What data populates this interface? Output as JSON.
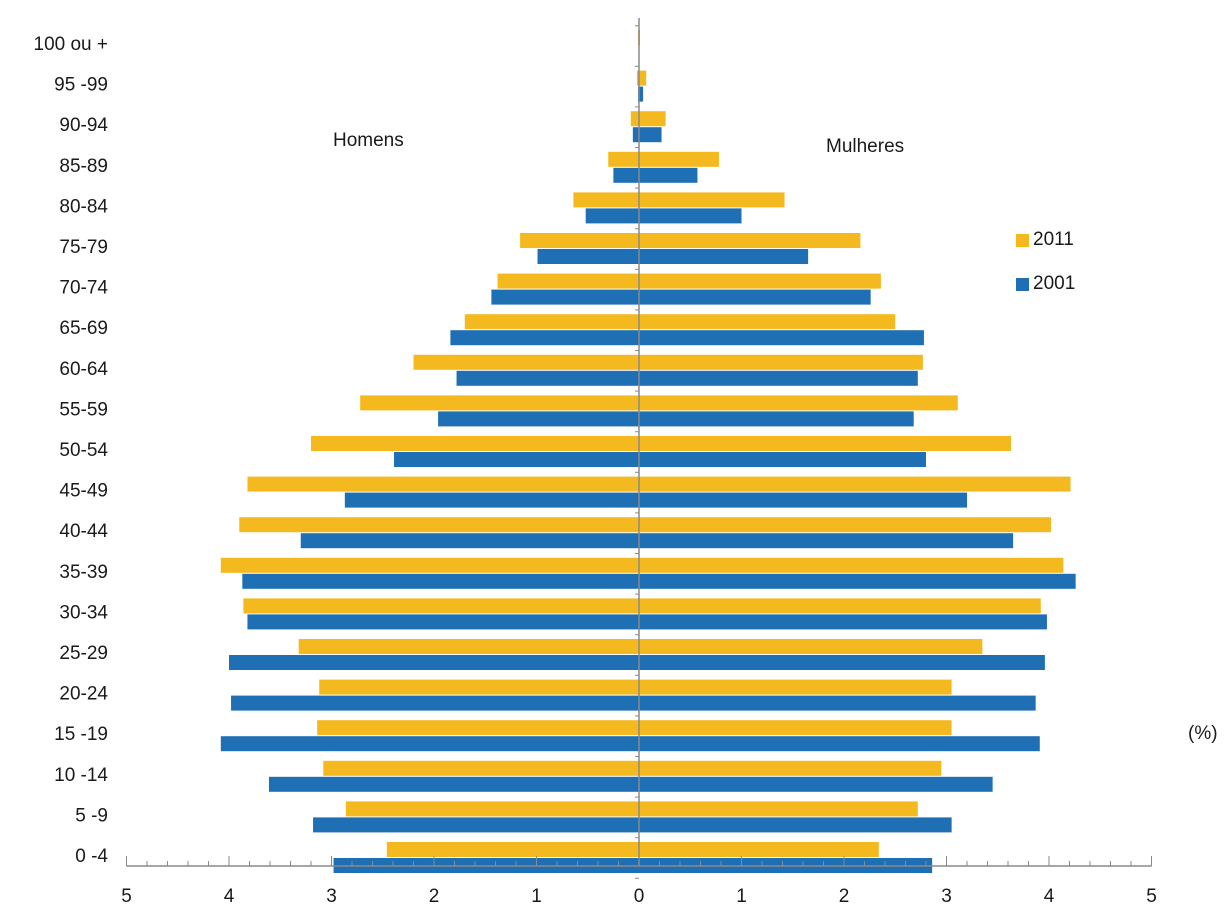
{
  "chart_data": {
    "type": "bar",
    "orientation": "horizontal",
    "layout": "population-pyramid",
    "categories": [
      "0 -4",
      "5 -9",
      "10 -14",
      "15 -19",
      "20-24",
      "25-29",
      "30-34",
      "35-39",
      "40-44",
      "45-49",
      "50-54",
      "55-59",
      "60-64",
      "65-69",
      "70-74",
      "75-79",
      "80-84",
      "85-89",
      "90-94",
      "95 -99",
      "100 ou +"
    ],
    "left_label": "Homens",
    "right_label": "Mulheres",
    "xlabel": "(%)",
    "xlim": [
      -5,
      5
    ],
    "xticks": [
      "5",
      "4",
      "3",
      "2",
      "1",
      "0",
      "1",
      "2",
      "3",
      "4",
      "5"
    ],
    "legend_position": "right",
    "series": [
      {
        "name": "2011",
        "color": "#F5B920",
        "men": [
          2.46,
          2.86,
          3.08,
          3.14,
          3.12,
          3.32,
          3.86,
          4.08,
          3.9,
          3.82,
          3.2,
          2.72,
          2.2,
          1.7,
          1.38,
          1.16,
          0.64,
          0.3,
          0.08,
          0.02,
          0.01
        ],
        "women": [
          2.34,
          2.72,
          2.95,
          3.05,
          3.05,
          3.35,
          3.92,
          4.14,
          4.02,
          4.21,
          3.63,
          3.11,
          2.77,
          2.5,
          2.36,
          2.16,
          1.42,
          0.78,
          0.26,
          0.07,
          0.01
        ]
      },
      {
        "name": "2001",
        "color": "#1F6FB5",
        "men": [
          2.98,
          3.18,
          3.61,
          4.08,
          3.98,
          4.0,
          3.82,
          3.87,
          3.3,
          2.87,
          2.39,
          1.96,
          1.78,
          1.84,
          1.44,
          0.99,
          0.52,
          0.25,
          0.06,
          0.01,
          0.0
        ],
        "women": [
          2.86,
          3.05,
          3.45,
          3.91,
          3.87,
          3.96,
          3.98,
          4.26,
          3.65,
          3.2,
          2.8,
          2.68,
          2.72,
          2.78,
          2.26,
          1.65,
          1.0,
          0.57,
          0.22,
          0.04,
          0.0
        ]
      }
    ]
  },
  "legend": {
    "items": [
      {
        "label": "2011",
        "color": "#F5B920"
      },
      {
        "label": "2001",
        "color": "#1F6FB5"
      }
    ]
  },
  "labels": {
    "homens": "Homens",
    "mulheres": "Mulheres",
    "unit": "(%)"
  }
}
